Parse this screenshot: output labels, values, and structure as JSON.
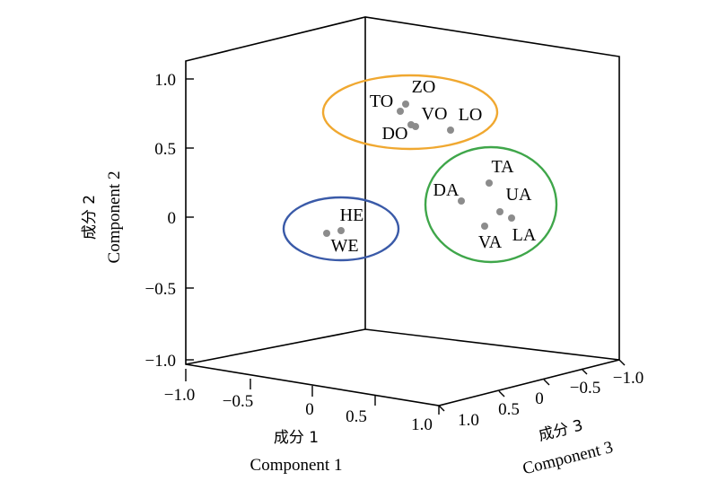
{
  "chart_data": {
    "type": "scatter3d",
    "axes": {
      "x": {
        "label_cn": "成分 1",
        "label_en": "Component 1",
        "ticks": [
          "−1.0",
          "−0.5",
          "0",
          "0.5",
          "1.0"
        ],
        "range": [
          -1,
          1
        ]
      },
      "y": {
        "label_cn": "成分 2",
        "label_en": "Component 2",
        "ticks": [
          "−1.0",
          "−0.5",
          "0",
          "0.5",
          "1.0"
        ],
        "range": [
          -1,
          1
        ]
      },
      "z": {
        "label_cn": "成分 3",
        "label_en": "Component 3",
        "ticks": [
          "−1.0",
          "−0.5",
          "0",
          "0.5",
          "1.0"
        ],
        "range": [
          -1,
          1
        ]
      }
    },
    "points": [
      {
        "label": "TO",
        "x": 0.55,
        "y": 0.78,
        "z": 0.35
      },
      {
        "label": "ZO",
        "x": 0.6,
        "y": 0.82,
        "z": 0.3
      },
      {
        "label": "VO",
        "x": 0.58,
        "y": 0.67,
        "z": 0.28
      },
      {
        "label": "DO",
        "x": 0.6,
        "y": 0.65,
        "z": 0.3
      },
      {
        "label": "LO",
        "x": 0.8,
        "y": 0.63,
        "z": 0.1
      },
      {
        "label": "TA",
        "x": 0.75,
        "y": 0.25,
        "z": -0.3
      },
      {
        "label": "DA",
        "x": 0.6,
        "y": 0.12,
        "z": -0.2
      },
      {
        "label": "UA",
        "x": 0.85,
        "y": 0.05,
        "z": -0.35
      },
      {
        "label": "LA",
        "x": 0.9,
        "y": 0.0,
        "z": -0.4
      },
      {
        "label": "VA",
        "x": 0.75,
        "y": -0.05,
        "z": -0.35
      },
      {
        "label": "HE",
        "x": -0.2,
        "y": -0.08,
        "z": 0.55
      },
      {
        "label": "WE",
        "x": -0.3,
        "y": -0.12,
        "z": 0.6
      }
    ],
    "clusters": [
      {
        "members": [
          "TO",
          "ZO",
          "VO",
          "DO",
          "LO"
        ],
        "color": "#f0a830"
      },
      {
        "members": [
          "TA",
          "DA",
          "UA",
          "LA",
          "VA"
        ],
        "color": "#3fa64a"
      },
      {
        "members": [
          "HE",
          "WE"
        ],
        "color": "#3a5aa8"
      }
    ],
    "point_color": "#8c8c8c",
    "grid": false
  }
}
